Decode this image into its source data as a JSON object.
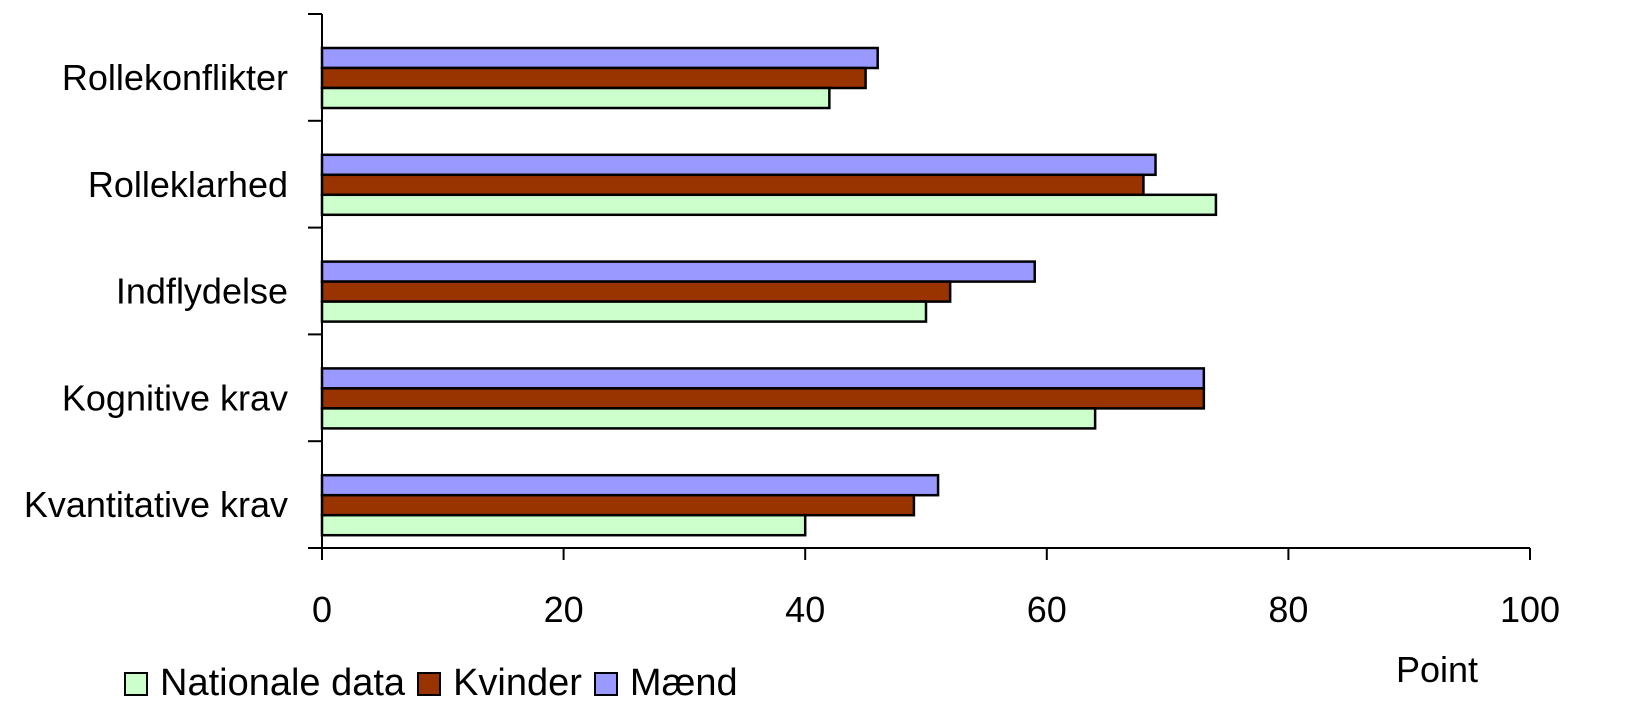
{
  "chart_data": {
    "type": "bar",
    "orientation": "horizontal",
    "categories": [
      "Rollekonflikter",
      "Rolleklarhed",
      "Indflydelse",
      "Kognitive krav",
      "Kvantitative krav"
    ],
    "series": [
      {
        "name": "Mænd",
        "color": "#9999ff",
        "values": [
          46,
          69,
          59,
          73,
          51
        ]
      },
      {
        "name": "Kvinder",
        "color": "#993300",
        "values": [
          45,
          68,
          52,
          73,
          49
        ]
      },
      {
        "name": "Nationale data",
        "color": "#ccffcc",
        "values": [
          42,
          74,
          50,
          64,
          40
        ]
      }
    ],
    "xlim": [
      0,
      100
    ],
    "xticks": [
      "0",
      "20",
      "40",
      "60",
      "80",
      "100"
    ],
    "xlabel": "Point",
    "grid": false,
    "legend": {
      "position": "bottom-left",
      "order": [
        "Nationale data",
        "Kvinder",
        "Mænd"
      ]
    }
  }
}
